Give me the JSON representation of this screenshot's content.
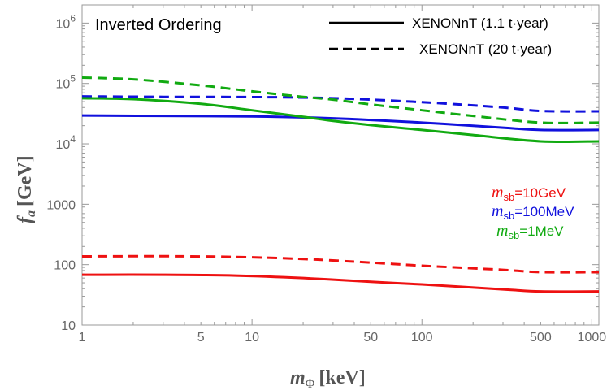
{
  "chart_data": {
    "type": "line",
    "title": "Inverted Ordering",
    "xlabel": {
      "main": "m",
      "sub": "Φ",
      "unit": "[keV]"
    },
    "ylabel": {
      "main": "f",
      "sub": "a",
      "unit": "[GeV]"
    },
    "xscale": "log",
    "yscale": "log",
    "xlim": [
      1,
      1100
    ],
    "ylim": [
      10,
      2000000
    ],
    "xticks": [
      {
        "value": 1,
        "label": "1"
      },
      {
        "value": 5,
        "label": "5"
      },
      {
        "value": 10,
        "label": "10"
      },
      {
        "value": 50,
        "label": "50"
      },
      {
        "value": 100,
        "label": "100"
      },
      {
        "value": 500,
        "label": "500"
      },
      {
        "value": 1000,
        "label": "1000"
      }
    ],
    "yticks": [
      {
        "value": 10,
        "label": "10"
      },
      {
        "value": 100,
        "label": "100"
      },
      {
        "value": 1000,
        "label": "1000"
      },
      {
        "value": 10000,
        "label": "10",
        "exp": "4"
      },
      {
        "value": 100000,
        "label": "10",
        "exp": "5"
      },
      {
        "value": 1000000,
        "label": "10",
        "exp": "6"
      }
    ],
    "grid": false,
    "legend": {
      "position": "top-right",
      "entries": [
        {
          "label": "XENONnT (1.1 t·year)",
          "style": "solid"
        },
        {
          "label": "XENONnT (20 t·year)",
          "style": "dashed"
        }
      ]
    },
    "annotations": [
      {
        "main": "m",
        "sub": "sb",
        "value": "=10GeV",
        "color": "#ee1111"
      },
      {
        "main": "m",
        "sub": "sb",
        "value": "=100MeV",
        "color": "#1111dd"
      },
      {
        "main": "m",
        "sub": "sb",
        "value": "=1MeV",
        "color": "#11aa11"
      }
    ],
    "series": [
      {
        "color": "#ee1111",
        "style": "solid",
        "x": [
          1,
          3,
          8,
          20,
          50,
          100,
          300,
          500,
          1100
        ],
        "y": [
          68,
          68,
          66,
          60,
          52,
          47,
          39,
          36,
          36
        ]
      },
      {
        "color": "#ee1111",
        "style": "dashed",
        "x": [
          1,
          3,
          8,
          20,
          50,
          100,
          300,
          500,
          1100
        ],
        "y": [
          137,
          138,
          134,
          124,
          108,
          96,
          82,
          75,
          75
        ]
      },
      {
        "color": "#1111dd",
        "style": "solid",
        "x": [
          1,
          3,
          10,
          30,
          100,
          300,
          500,
          1100
        ],
        "y": [
          29500,
          29000,
          28500,
          26500,
          22500,
          18500,
          17000,
          17000
        ]
      },
      {
        "color": "#1111dd",
        "style": "dashed",
        "x": [
          1,
          3,
          10,
          30,
          100,
          300,
          500,
          1100
        ],
        "y": [
          61000,
          60000,
          59500,
          57000,
          49000,
          40000,
          35000,
          34500
        ]
      },
      {
        "color": "#11aa11",
        "style": "solid",
        "x": [
          1,
          2,
          5,
          10,
          20,
          30,
          50,
          100,
          200,
          500,
          1100
        ],
        "y": [
          57000,
          55000,
          46000,
          36000,
          28000,
          24000,
          20500,
          17000,
          14000,
          11000,
          11000
        ]
      },
      {
        "color": "#11aa11",
        "style": "dashed",
        "x": [
          1,
          2,
          5,
          10,
          20,
          30,
          50,
          100,
          200,
          500,
          1100
        ],
        "y": [
          125000,
          117000,
          93000,
          74000,
          60000,
          54000,
          45000,
          36000,
          29000,
          22500,
          22500
        ]
      }
    ]
  }
}
